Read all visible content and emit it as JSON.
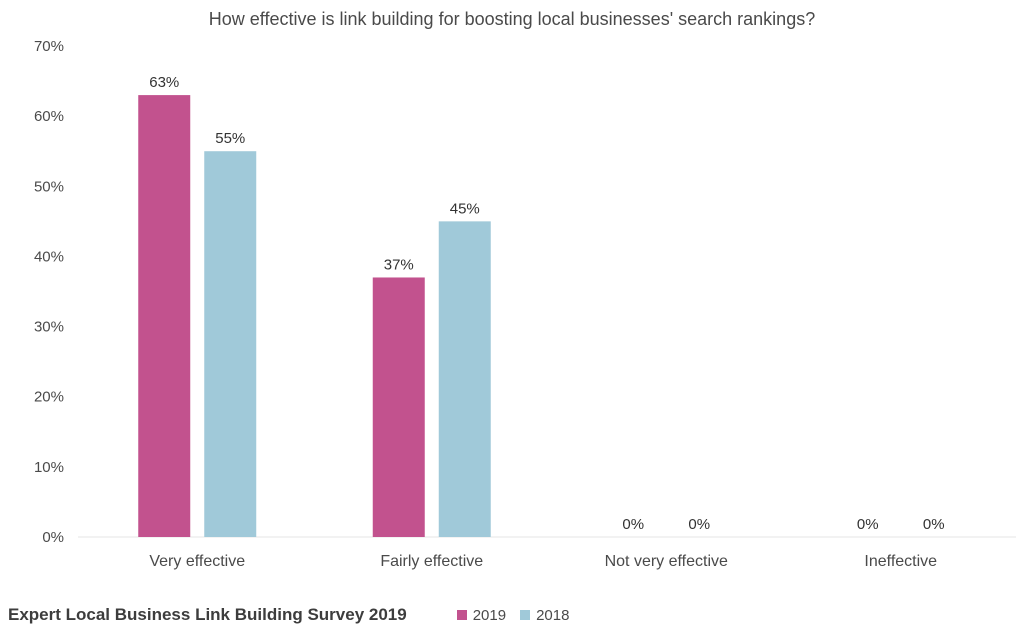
{
  "chart_data": {
    "type": "bar",
    "title": "How effective is link building for boosting local businesses' search rankings?",
    "categories": [
      "Very effective",
      "Fairly effective",
      "Not very effective",
      "Ineffective"
    ],
    "series": [
      {
        "name": "2019",
        "values": [
          63,
          37,
          0,
          0
        ],
        "labels": [
          "63%",
          "37%",
          "0%",
          "0%"
        ],
        "color": "#c2528e"
      },
      {
        "name": "2018",
        "values": [
          55,
          45,
          0,
          0
        ],
        "labels": [
          "55%",
          "45%",
          "0%",
          "0%"
        ],
        "color": "#a0c9d9"
      }
    ],
    "ylim": [
      0,
      70
    ],
    "yticks": [
      "0%",
      "10%",
      "20%",
      "30%",
      "40%",
      "50%",
      "60%",
      "70%"
    ],
    "ytick_values": [
      0,
      10,
      20,
      30,
      40,
      50,
      60,
      70
    ],
    "grid": false,
    "legend_position": "bottom"
  },
  "footer": {
    "source": "Expert Local Business Link Building Survey 2019"
  },
  "legend": {
    "items": [
      {
        "label": "2019",
        "color": "#c2528e"
      },
      {
        "label": "2018",
        "color": "#a0c9d9"
      }
    ]
  }
}
